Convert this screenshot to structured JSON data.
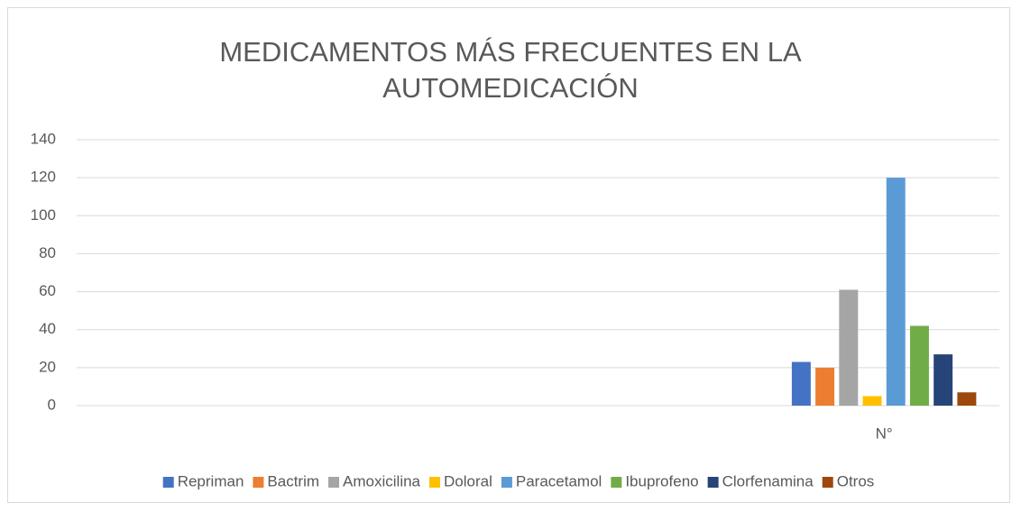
{
  "chart_data": {
    "type": "bar",
    "title": "MEDICAMENTOS MÁS FRECUENTES EN LA AUTOMEDICACIÓN",
    "categories": [
      null,
      null,
      null,
      "N°"
    ],
    "series": [
      {
        "name": "Repriman",
        "color": "#4472c4",
        "values": [
          null,
          null,
          null,
          23
        ]
      },
      {
        "name": "Bactrim",
        "color": "#ed7d31",
        "values": [
          null,
          null,
          null,
          20
        ]
      },
      {
        "name": "Amoxicilina",
        "color": "#a5a5a5",
        "values": [
          null,
          null,
          null,
          61
        ]
      },
      {
        "name": "Doloral",
        "color": "#ffc000",
        "values": [
          null,
          null,
          null,
          5
        ]
      },
      {
        "name": "Paracetamol",
        "color": "#5b9bd5",
        "values": [
          null,
          null,
          null,
          120
        ]
      },
      {
        "name": "Ibuprofeno",
        "color": "#70ad47",
        "values": [
          null,
          null,
          null,
          42
        ]
      },
      {
        "name": "Clorfenamina",
        "color": "#264478",
        "values": [
          null,
          null,
          null,
          27
        ]
      },
      {
        "name": "Otros",
        "color": "#9e480e",
        "values": [
          null,
          null,
          null,
          7
        ]
      }
    ],
    "ylim": [
      0,
      140
    ],
    "yticks": [
      0,
      20,
      40,
      60,
      80,
      100,
      120,
      140
    ],
    "grid": true,
    "legend": "bottom"
  }
}
